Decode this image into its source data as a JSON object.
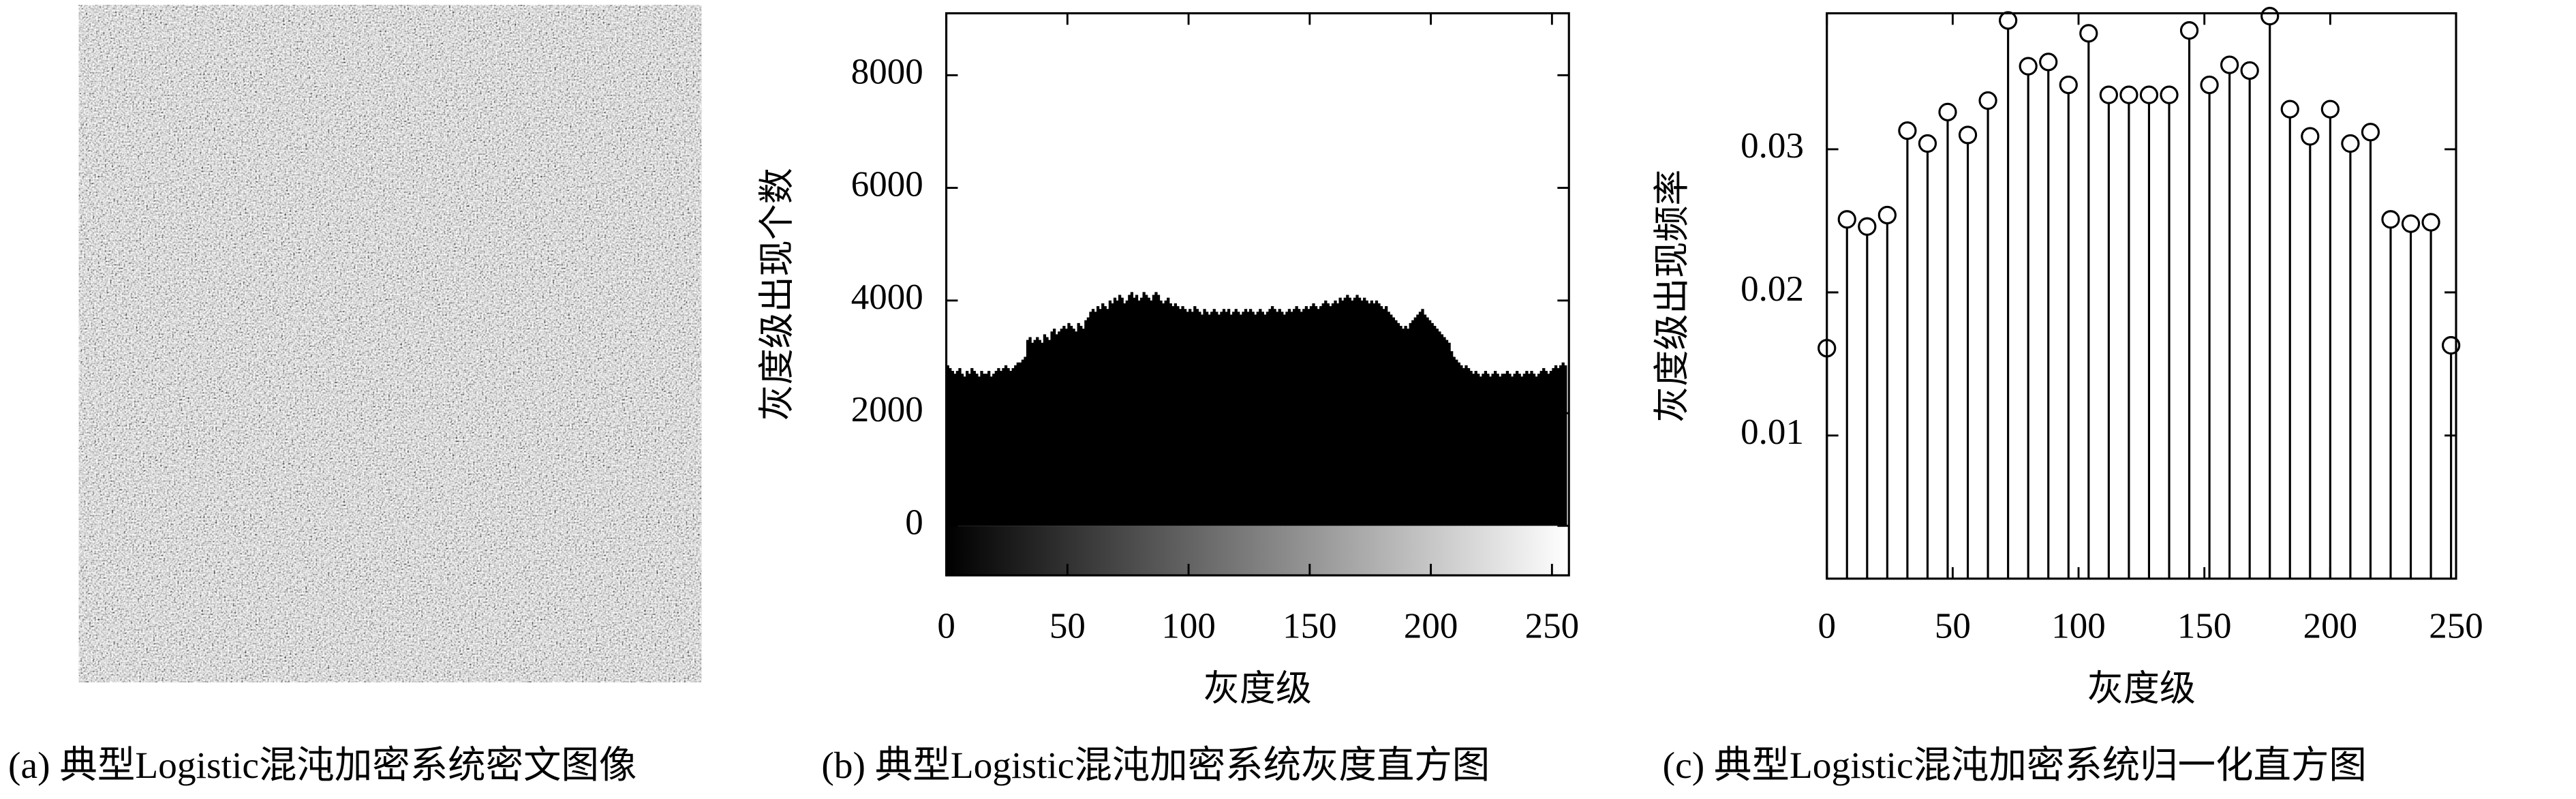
{
  "image": {
    "caption": "(a) 典型Logistic混沌加密系统密文图像"
  },
  "chart_data": [
    {
      "type": "histogram",
      "caption": "(b) 典型Logistic混沌加密系统灰度直方图",
      "x_label": "灰度级",
      "y_label": "灰度级出现个数",
      "color": "#000000",
      "bins": [
        0,
        1,
        2,
        3,
        4,
        5,
        6,
        7,
        8,
        9,
        10,
        11,
        12,
        13,
        14,
        15,
        16,
        17,
        18,
        19,
        20,
        21,
        22,
        23,
        24,
        25,
        26,
        27,
        28,
        29,
        30,
        31,
        32,
        33,
        34,
        35,
        36,
        37,
        38,
        39,
        40,
        41,
        42,
        43,
        44,
        45,
        46,
        47,
        48,
        49,
        50,
        51,
        52,
        53,
        54,
        55,
        56,
        57,
        58,
        59,
        60,
        61,
        62,
        63,
        64,
        65,
        66,
        67,
        68,
        69,
        70,
        71,
        72,
        73,
        74,
        75,
        76,
        77,
        78,
        79,
        80,
        81,
        82,
        83,
        84,
        85,
        86,
        87,
        88,
        89,
        90,
        91,
        92,
        93,
        94,
        95,
        96,
        97,
        98,
        99,
        100,
        101,
        102,
        103,
        104,
        105,
        106,
        107,
        108,
        109,
        110,
        111,
        112,
        113,
        114,
        115,
        116,
        117,
        118,
        119,
        120,
        121,
        122,
        123,
        124,
        125,
        126,
        127,
        128,
        129,
        130,
        131,
        132,
        133,
        134,
        135,
        136,
        137,
        138,
        139,
        140,
        141,
        142,
        143,
        144,
        145,
        146,
        147,
        148,
        149,
        150,
        151,
        152,
        153,
        154,
        155,
        156,
        157,
        158,
        159,
        160,
        161,
        162,
        163,
        164,
        165,
        166,
        167,
        168,
        169,
        170,
        171,
        172,
        173,
        174,
        175,
        176,
        177,
        178,
        179,
        180,
        181,
        182,
        183,
        184,
        185,
        186,
        187,
        188,
        189,
        190,
        191,
        192,
        193,
        194,
        195,
        196,
        197,
        198,
        199,
        200,
        201,
        202,
        203,
        204,
        205,
        206,
        207,
        208,
        209,
        210,
        211,
        212,
        213,
        214,
        215,
        216,
        217,
        218,
        219,
        220,
        221,
        222,
        223,
        224,
        225,
        226,
        227,
        228,
        229,
        230,
        231,
        232,
        233,
        234,
        235,
        236,
        237,
        238,
        239,
        240,
        241,
        242,
        243,
        244,
        245,
        246,
        247,
        248,
        249,
        250,
        251,
        252,
        253,
        254,
        255,
        256
      ],
      "values": [
        2850,
        2800,
        2750,
        2700,
        2750,
        2800,
        2700,
        2650,
        2750,
        2700,
        2800,
        2750,
        2700,
        2650,
        2750,
        2700,
        2700,
        2750,
        2650,
        2700,
        2750,
        2800,
        2750,
        2800,
        2850,
        2800,
        2750,
        2800,
        2850,
        2900,
        2900,
        2950,
        3000,
        3300,
        3350,
        3250,
        3300,
        3350,
        3300,
        3250,
        3400,
        3350,
        3300,
        3450,
        3500,
        3400,
        3450,
        3500,
        3550,
        3500,
        3600,
        3550,
        3500,
        3450,
        3600,
        3550,
        3500,
        3650,
        3700,
        3800,
        3850,
        3800,
        3900,
        3850,
        3950,
        3900,
        3850,
        4000,
        3950,
        4050,
        4000,
        4100,
        4050,
        3950,
        4000,
        4100,
        4150,
        4050,
        4100,
        4000,
        4050,
        4150,
        4100,
        4050,
        4000,
        4100,
        4150,
        4100,
        4000,
        3950,
        4000,
        4050,
        3950,
        3900,
        3950,
        3900,
        3850,
        3900,
        3850,
        3800,
        3850,
        3800,
        3900,
        3850,
        3800,
        3750,
        3850,
        3800,
        3750,
        3800,
        3850,
        3800,
        3750,
        3800,
        3850,
        3800,
        3850,
        3750,
        3800,
        3850,
        3800,
        3750,
        3800,
        3850,
        3800,
        3850,
        3800,
        3750,
        3800,
        3850,
        3800,
        3750,
        3800,
        3850,
        3900,
        3850,
        3800,
        3850,
        3800,
        3750,
        3800,
        3850,
        3800,
        3850,
        3900,
        3850,
        3800,
        3850,
        3900,
        3850,
        3900,
        3950,
        3900,
        3850,
        3900,
        3950,
        4000,
        3950,
        3900,
        3950,
        4000,
        3950,
        4050,
        4000,
        4050,
        4100,
        4050,
        4000,
        4050,
        4100,
        4050,
        4000,
        4050,
        4000,
        3950,
        4000,
        3950,
        4000,
        3950,
        3900,
        3850,
        3900,
        3800,
        3750,
        3700,
        3650,
        3600,
        3550,
        3500,
        3550,
        3500,
        3600,
        3650,
        3700,
        3750,
        3800,
        3850,
        3750,
        3700,
        3650,
        3600,
        3550,
        3500,
        3450,
        3400,
        3350,
        3300,
        3250,
        3100,
        3000,
        2950,
        2900,
        2850,
        2800,
        2850,
        2800,
        2750,
        2700,
        2750,
        2700,
        2650,
        2700,
        2750,
        2700,
        2650,
        2700,
        2750,
        2700,
        2650,
        2700,
        2700,
        2750,
        2700,
        2650,
        2700,
        2750,
        2700,
        2650,
        2700,
        2750,
        2700,
        2750,
        2700,
        2650,
        2700,
        2750,
        2800,
        2750,
        2700,
        2750,
        2800,
        2850,
        2800,
        2850,
        2900,
        2850
      ],
      "xlim": [
        0,
        257
      ],
      "xticks": [
        0,
        50,
        100,
        150,
        200,
        250
      ],
      "ylim": [
        -880,
        9100
      ],
      "yticks": [
        0,
        2000,
        4000,
        6000,
        8000
      ]
    },
    {
      "type": "stem",
      "caption": "(c) 典型Logistic混沌加密系统归一化直方图",
      "x_label": "灰度级",
      "y_label": "灰度级出现频率",
      "color": "#000000",
      "x": [
        0,
        8,
        16,
        24,
        32,
        40,
        48,
        56,
        64,
        72,
        80,
        88,
        96,
        104,
        112,
        120,
        128,
        136,
        144,
        152,
        160,
        168,
        176,
        184,
        192,
        200,
        208,
        216,
        224,
        232,
        240,
        248
      ],
      "values": [
        0.0161,
        0.0251,
        0.0246,
        0.0254,
        0.0313,
        0.0304,
        0.0326,
        0.031,
        0.0334,
        0.039,
        0.0358,
        0.0361,
        0.0345,
        0.0381,
        0.0338,
        0.0338,
        0.0338,
        0.0338,
        0.0383,
        0.0345,
        0.0359,
        0.0355,
        0.0393,
        0.0328,
        0.0309,
        0.0328,
        0.0304,
        0.0312,
        0.0251,
        0.0248,
        0.0249,
        0.0163
      ],
      "xlim": [
        0,
        250
      ],
      "xticks": [
        0,
        50,
        100,
        150,
        200,
        250
      ],
      "ylim": [
        0,
        0.0395
      ],
      "yticks": [
        0.01,
        0.02,
        0.03
      ]
    }
  ]
}
